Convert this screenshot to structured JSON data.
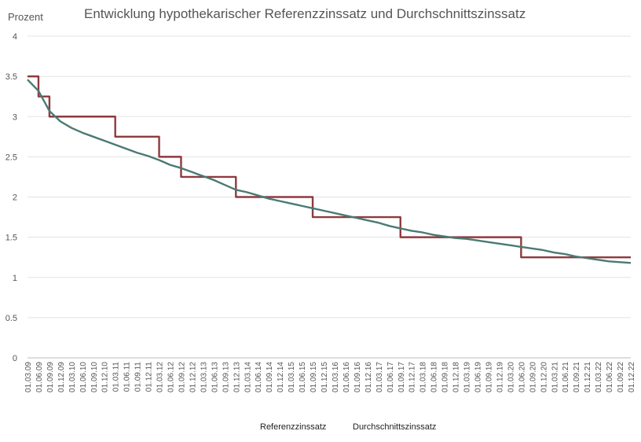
{
  "chart_data": {
    "type": "line",
    "title": "Entwicklung hypothekarischer Referenzzinssatz und Durchschnittszinssatz",
    "ylabel": "Prozent",
    "xlabel": "",
    "ylim": [
      0,
      4
    ],
    "yticks": [
      "0",
      "0.5",
      "1",
      "1.5",
      "2",
      "2.5",
      "3",
      "3.5",
      "4"
    ],
    "grid": true,
    "legend_position": "bottom",
    "categories": [
      "01.03.09",
      "01.06.09",
      "01.09.09",
      "01.12.09",
      "01.03.10",
      "01.06.10",
      "01.09.10",
      "01.12.10",
      "01.03.11",
      "01.06.11",
      "01.09.11",
      "01.12.11",
      "01.03.12",
      "01.06.12",
      "01.09.12",
      "01.12.12",
      "01.03.13",
      "01.06.13",
      "01.09.13",
      "01.12.13",
      "01.03.14",
      "01.06.14",
      "01.09.14",
      "01.12.14",
      "01.03.15",
      "01.06.15",
      "01.09.15",
      "01.12.15",
      "01.03.16",
      "01.06.16",
      "01.09.16",
      "01.12.16",
      "01.03.17",
      "01.06.17",
      "01.09.17",
      "01.12.17",
      "01.03.18",
      "01.06.18",
      "01.09.18",
      "01.12.18",
      "01.03.19",
      "01.06.19",
      "01.09.19",
      "01.12.19",
      "01.03.20",
      "01.06.20",
      "01.09.20",
      "01.12.20",
      "01.03.21",
      "01.06.21",
      "01.09.21",
      "01.12.21",
      "01.03.22",
      "01.06.22",
      "01.09.22",
      "01.12.22"
    ],
    "series": [
      {
        "name": "Referenzzinssatz",
        "color": "#8e3a3f",
        "step": true,
        "values": [
          3.5,
          3.25,
          3,
          3,
          3,
          3,
          3,
          3,
          2.75,
          2.75,
          2.75,
          2.75,
          2.5,
          2.5,
          2.25,
          2.25,
          2.25,
          2.25,
          2.25,
          2,
          2,
          2,
          2,
          2,
          2,
          2,
          1.75,
          1.75,
          1.75,
          1.75,
          1.75,
          1.75,
          1.75,
          1.75,
          1.5,
          1.5,
          1.5,
          1.5,
          1.5,
          1.5,
          1.5,
          1.5,
          1.5,
          1.5,
          1.5,
          1.25,
          1.25,
          1.25,
          1.25,
          1.25,
          1.25,
          1.25,
          1.25,
          1.25,
          1.25,
          1.25
        ]
      },
      {
        "name": "Durchschnittszinssatz",
        "color": "#4a7a74",
        "step": false,
        "values": [
          3.46,
          3.32,
          3.07,
          2.94,
          2.86,
          2.8,
          2.75,
          2.7,
          2.65,
          2.6,
          2.55,
          2.51,
          2.46,
          2.4,
          2.36,
          2.31,
          2.26,
          2.21,
          2.15,
          2.09,
          2.06,
          2.02,
          1.98,
          1.95,
          1.92,
          1.89,
          1.86,
          1.83,
          1.8,
          1.77,
          1.74,
          1.71,
          1.68,
          1.64,
          1.61,
          1.58,
          1.56,
          1.53,
          1.51,
          1.49,
          1.48,
          1.46,
          1.44,
          1.42,
          1.4,
          1.38,
          1.36,
          1.34,
          1.31,
          1.29,
          1.26,
          1.24,
          1.22,
          1.2,
          1.19,
          1.18
        ]
      }
    ]
  }
}
